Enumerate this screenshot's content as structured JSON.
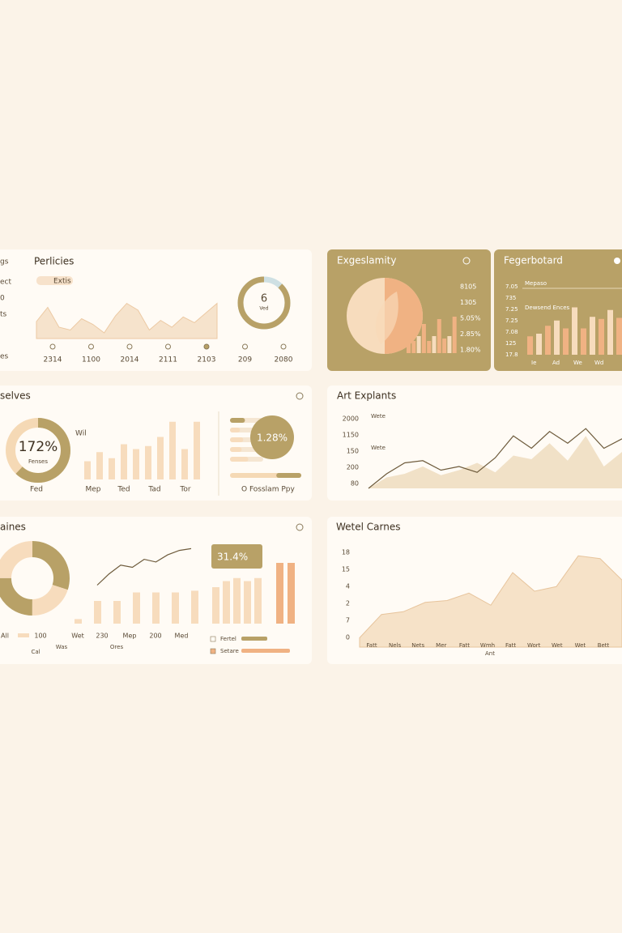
{
  "p1": {
    "title": "Perlicies",
    "tag": "Extis",
    "left_labels": [
      "gs",
      "ect",
      "0",
      "ts",
      "es"
    ],
    "area": [
      30,
      55,
      20,
      15,
      35,
      25,
      10,
      40,
      62,
      50,
      15,
      32,
      20,
      38,
      28,
      45,
      62
    ],
    "donut_label": "6",
    "donut_sub": "Ved",
    "donut_share": 88,
    "x_labels": [
      "2314",
      "1100",
      "2014",
      "2111",
      "2103",
      "209",
      "2080"
    ]
  },
  "p2": {
    "title": "Exgeslamity",
    "right_labels": [
      "8105",
      "1305",
      "5.05%",
      "2.85%",
      "1.80%"
    ],
    "bars": [
      20,
      25,
      35,
      60,
      25,
      35,
      70,
      30,
      35,
      75
    ],
    "pie_share": 50
  },
  "p3": {
    "title": "Fegerbotard",
    "legend": [
      "Mepaso",
      "Dewsend Ences"
    ],
    "left_labels": [
      "7.05",
      "735",
      "7.25",
      "7.25",
      "7.08",
      "125",
      "17.8"
    ],
    "bars": [
      35,
      40,
      55,
      65,
      50,
      90,
      50,
      72,
      68,
      85,
      70
    ],
    "x_labels": [
      "Ie",
      "Ad",
      "We",
      "Wd"
    ]
  },
  "p4": {
    "title": "selves",
    "donut_label": "172%",
    "donut_sub": "Fenses",
    "donut_share": 62,
    "side": "Wil",
    "bars": [
      30,
      45,
      35,
      58,
      50,
      55,
      70,
      95,
      50,
      95
    ],
    "x_labels": [
      "Fed",
      "Mep",
      "Ted",
      "Tad",
      "Tor"
    ],
    "hbars": [
      45,
      30,
      40,
      35,
      55
    ],
    "circle_label": "1.28%",
    "progress": 35,
    "legend": "O Fosslam Ppy"
  },
  "p5": {
    "title": "Art Explants",
    "y_labels": [
      "2000",
      "1150",
      "150",
      "200",
      "80"
    ],
    "notes": [
      "Wete",
      "Wete"
    ],
    "line": [
      0,
      20,
      35,
      38,
      25,
      30,
      22,
      42,
      72,
      55,
      78,
      62,
      82,
      55,
      68
    ],
    "area": [
      0,
      15,
      20,
      30,
      18,
      25,
      35,
      22,
      45,
      40,
      62,
      38,
      72,
      30,
      50
    ]
  },
  "p6": {
    "title": "aines",
    "donut_shares": [
      30,
      20,
      25,
      25
    ],
    "labels": [
      "All",
      "100",
      "Wet",
      "230",
      "Mep",
      "200",
      "Med"
    ],
    "notes": [
      "Cal",
      "Was",
      "Ores"
    ],
    "line": [
      10,
      35,
      55,
      50,
      68,
      62,
      78,
      88,
      92
    ],
    "bars": [
      8,
      40,
      40,
      55,
      55,
      55,
      58
    ],
    "box_label": "31.4%",
    "bars2": [
      60,
      70,
      75,
      70,
      75
    ],
    "bars3": [
      100,
      100
    ],
    "legend": [
      "Fertel",
      "Setare"
    ]
  },
  "p7": {
    "title": "Wetel Carnes",
    "y_labels": [
      "18",
      "15",
      "4",
      "2",
      "7",
      "0"
    ],
    "x_labels": [
      "Fatt",
      "Nels",
      "Nets",
      "Mer",
      "Fatt",
      "Wmh",
      "Fatt",
      "Wort",
      "Wet",
      "Wet",
      "Bett"
    ],
    "x_title": "Ant",
    "area": [
      10,
      35,
      38,
      48,
      50,
      58,
      45,
      80,
      60,
      65,
      98,
      95,
      72
    ]
  }
}
